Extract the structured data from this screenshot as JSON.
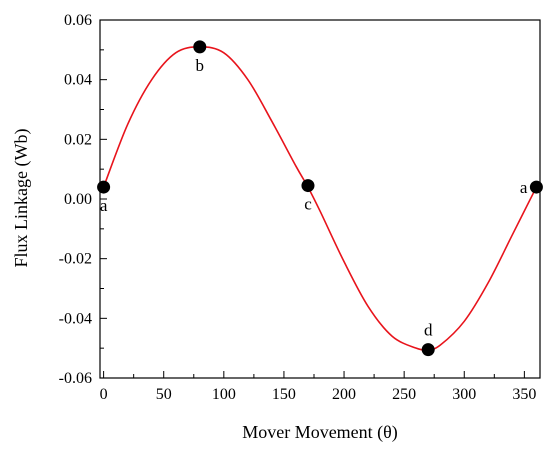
{
  "chart_data": {
    "type": "line",
    "xlabel": "Mover Movement (θ)",
    "ylabel": "Flux Linkage (Wb)",
    "xlim": [
      -3,
      363
    ],
    "ylim": [
      -0.06,
      0.06
    ],
    "x_ticks": [
      0,
      50,
      100,
      150,
      200,
      250,
      300,
      350
    ],
    "y_ticks": [
      -0.06,
      -0.04,
      -0.02,
      0.0,
      0.02,
      0.04,
      0.06
    ],
    "x_tick_labels": [
      "0",
      "50",
      "100",
      "150",
      "200",
      "250",
      "300",
      "350"
    ],
    "y_tick_labels": [
      "-0.06",
      "-0.04",
      "-0.02",
      "0.00",
      "0.02",
      "0.04",
      "0.06"
    ],
    "grid": false,
    "line_color": "#e8141c",
    "marker_color": "#000000",
    "curve": {
      "x": [
        0,
        20,
        40,
        60,
        80,
        100,
        120,
        140,
        160,
        170,
        180,
        200,
        220,
        240,
        260,
        270,
        280,
        300,
        320,
        340,
        360
      ],
      "y": [
        0.004,
        0.025,
        0.04,
        0.049,
        0.051,
        0.049,
        0.04,
        0.026,
        0.011,
        0.004,
        -0.004,
        -0.021,
        -0.036,
        -0.046,
        -0.05,
        -0.0505,
        -0.049,
        -0.041,
        -0.028,
        -0.012,
        0.004
      ]
    },
    "points": [
      {
        "label": "a",
        "x": 0,
        "y": 0.004,
        "label_pos": "below"
      },
      {
        "label": "b",
        "x": 80,
        "y": 0.051,
        "label_pos": "below"
      },
      {
        "label": "c",
        "x": 170,
        "y": 0.0045,
        "label_pos": "below"
      },
      {
        "label": "d",
        "x": 270,
        "y": -0.0505,
        "label_pos": "above"
      },
      {
        "label": "a",
        "x": 360,
        "y": 0.004,
        "label_pos": "left"
      }
    ]
  }
}
